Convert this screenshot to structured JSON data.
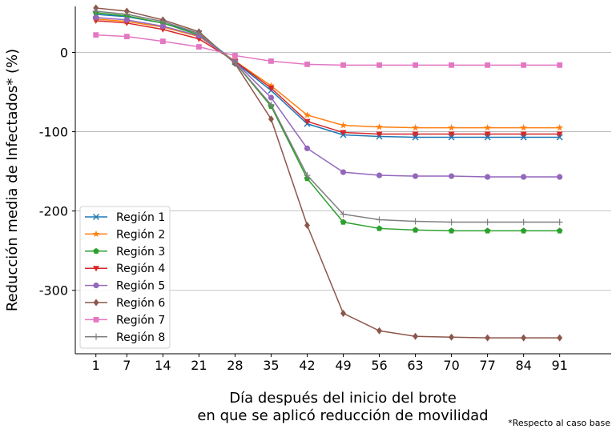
{
  "chart_data": {
    "type": "line",
    "title": "",
    "xlabel_lines": [
      "Día después del inicio del brote",
      "en que se aplicó reducción de movilidad"
    ],
    "ylabel": "Reducción media de Infectados* (%)",
    "footnote": "*Respecto al caso base",
    "x": [
      1,
      7,
      14,
      21,
      28,
      35,
      42,
      49,
      56,
      63,
      70,
      77,
      84,
      91
    ],
    "xlim": [
      -3,
      101
    ],
    "ylim": [
      -380,
      58
    ],
    "yticks": [
      0,
      -100,
      -200,
      -300
    ],
    "ytick_labels": [
      "0",
      "-100",
      "-200",
      "-300"
    ],
    "grid": "horizontal",
    "legend_position": "lower-left",
    "series": [
      {
        "name": "Región 1",
        "color": "#1f77b4",
        "marker": "x",
        "values": [
          48,
          45,
          37,
          24,
          -12,
          -48,
          -90,
          -104,
          -106,
          -107,
          -107,
          -107,
          -107,
          -107
        ]
      },
      {
        "name": "Región 2",
        "color": "#ff7f0e",
        "marker": "star",
        "values": [
          42,
          39,
          32,
          20,
          -11,
          -42,
          -79,
          -92,
          -94,
          -95,
          -95,
          -95,
          -95,
          -95
        ]
      },
      {
        "name": "Región 3",
        "color": "#2ca02c",
        "marker": "pentagon",
        "values": [
          50,
          46,
          37,
          22,
          -13,
          -68,
          -159,
          -214,
          -222,
          -224,
          -225,
          -225,
          -225,
          -225
        ]
      },
      {
        "name": "Región 4",
        "color": "#d62728",
        "marker": "triangle-down",
        "values": [
          40,
          37,
          29,
          17,
          -11,
          -45,
          -87,
          -101,
          -103,
          -103,
          -103,
          -103,
          -103,
          -103
        ]
      },
      {
        "name": "Región 5",
        "color": "#9467bd",
        "marker": "circle",
        "values": [
          44,
          41,
          33,
          21,
          -12,
          -57,
          -121,
          -151,
          -155,
          -156,
          -156,
          -157,
          -157,
          -157
        ]
      },
      {
        "name": "Región 6",
        "color": "#8c564b",
        "marker": "diamond",
        "values": [
          56,
          52,
          41,
          26,
          -14,
          -84,
          -218,
          -329,
          -351,
          -358,
          -359,
          -360,
          -360,
          -360
        ]
      },
      {
        "name": "Región 7",
        "color": "#e377c2",
        "marker": "square",
        "values": [
          22,
          20,
          14,
          7,
          -4,
          -11,
          -15,
          -16,
          -16,
          -16,
          -16,
          -16,
          -16,
          -16
        ]
      },
      {
        "name": "Región 8",
        "color": "#7f7f7f",
        "marker": "plus",
        "values": [
          52,
          48,
          39,
          24,
          -13,
          -66,
          -155,
          -204,
          -211,
          -213,
          -214,
          -214,
          -214,
          -214
        ]
      }
    ]
  }
}
